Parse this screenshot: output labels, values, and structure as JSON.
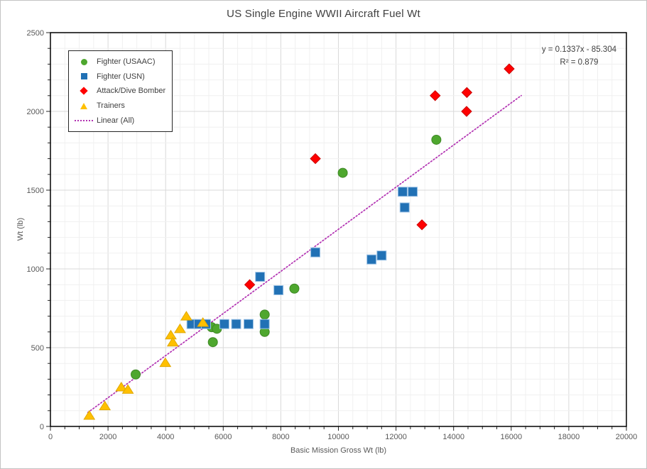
{
  "annotation": {
    "line1": "y = 0.1337x - 85.304",
    "line2": "R² = 0.879"
  },
  "chart_data": {
    "type": "scatter",
    "title": "US Single Engine WWII Aircraft Fuel Wt",
    "xlabel": "Basic Mission Gross Wt (lb)",
    "ylabel": "Wt (lb)",
    "xlim": [
      0,
      20000
    ],
    "ylim": [
      0,
      2500
    ],
    "x_tick_major": 2000,
    "x_tick_minor": 500,
    "y_tick_major": 500,
    "y_tick_minor": 100,
    "grid": true,
    "legend_position": "top-left-inside",
    "colors": {
      "major_grid": "#d9d9d9",
      "minor_grid": "#f0f0f0",
      "plot_border": "#000000",
      "tick": "#262626",
      "tick_label": "#595959"
    },
    "series": [
      {
        "name": "Fighter (USAAC)",
        "marker": "circle",
        "color": "#4ea72e",
        "stroke": "#3e8825",
        "points": [
          [
            2960,
            330
          ],
          [
            5600,
            630
          ],
          [
            5780,
            620
          ],
          [
            5640,
            535
          ],
          [
            7440,
            710
          ],
          [
            7440,
            600
          ],
          [
            8470,
            875
          ],
          [
            10150,
            1610
          ],
          [
            13400,
            1820
          ]
        ]
      },
      {
        "name": "Fighter (USN)",
        "marker": "square",
        "color": "#2171b5",
        "stroke": "#9dc3e6",
        "points": [
          [
            4900,
            650
          ],
          [
            5150,
            650
          ],
          [
            5400,
            650
          ],
          [
            6040,
            650
          ],
          [
            6450,
            650
          ],
          [
            6880,
            650
          ],
          [
            7440,
            650
          ],
          [
            7280,
            950
          ],
          [
            7920,
            865
          ],
          [
            9200,
            1105
          ],
          [
            11150,
            1060
          ],
          [
            11500,
            1085
          ],
          [
            12230,
            1490
          ],
          [
            12580,
            1490
          ],
          [
            12300,
            1390
          ]
        ]
      },
      {
        "name": "Attack/Dive Bomber",
        "marker": "diamond",
        "color": "#ff0000",
        "stroke": "#cc0000",
        "points": [
          [
            6920,
            900
          ],
          [
            9200,
            1700
          ],
          [
            12900,
            1280
          ],
          [
            13360,
            2100
          ],
          [
            14460,
            2120
          ],
          [
            14450,
            2000
          ],
          [
            15930,
            2270
          ]
        ]
      },
      {
        "name": "Trainers",
        "marker": "triangle",
        "color": "#ffc000",
        "stroke": "#e0a800",
        "points": [
          [
            1350,
            70
          ],
          [
            1890,
            130
          ],
          [
            2460,
            250
          ],
          [
            2690,
            235
          ],
          [
            3990,
            405
          ],
          [
            4180,
            580
          ],
          [
            4250,
            535
          ],
          [
            4500,
            620
          ],
          [
            4720,
            700
          ],
          [
            5295,
            660
          ]
        ]
      }
    ],
    "trendline": {
      "name": "Linear (All)",
      "slope": 0.1337,
      "intercept": -85.304,
      "x_range": [
        1300,
        16350
      ],
      "color": "#b232b2",
      "style": "dotted",
      "equation": "y = 0.1337x - 85.304",
      "r_squared": 0.879
    }
  }
}
